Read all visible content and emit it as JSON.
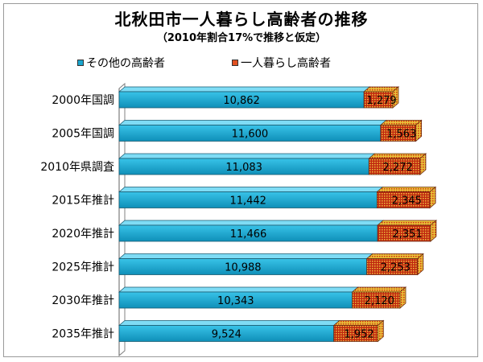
{
  "chart_data": {
    "type": "bar",
    "orientation": "horizontal",
    "stacked": true,
    "title": "北秋田市一人暮らし高齢者の推移",
    "subtitle": "（2010年割合17%で推移と仮定）",
    "categories": [
      "2000年国調",
      "2005年国調",
      "2010年県調査",
      "2015年推計",
      "2020年推計",
      "2025年推計",
      "2030年推計",
      "2035年推計"
    ],
    "series": [
      {
        "name": "その他の高齢者",
        "values": [
          10862,
          11600,
          11083,
          11442,
          11466,
          10988,
          10343,
          9524
        ],
        "value_labels": [
          "10,862",
          "11,600",
          "11,083",
          "11,442",
          "11,466",
          "10,988",
          "10,343",
          "9,524"
        ],
        "color": "#1aa6cf"
      },
      {
        "name": "一人暮らし高齢者",
        "values": [
          1279,
          1563,
          2272,
          2345,
          2351,
          2253,
          2120,
          1952
        ],
        "value_labels": [
          "1,279",
          "1,563",
          "2,272",
          "2,345",
          "2,351",
          "2,253",
          "2,120",
          "1,952"
        ],
        "color": "#e05020"
      }
    ],
    "xlim": [
      0,
      15000
    ],
    "grid": false,
    "legend_position": "top",
    "style": "3d"
  }
}
